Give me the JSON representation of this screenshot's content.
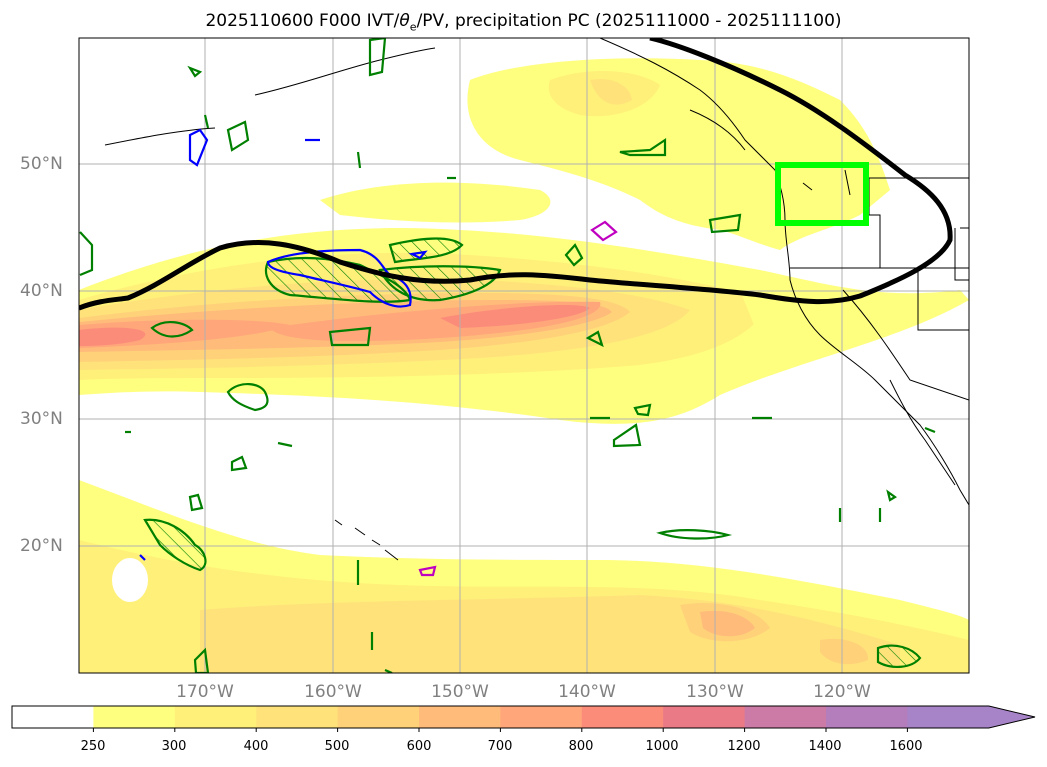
{
  "title": {
    "prefix": "2025110600 F000 IVT/",
    "theta": "θ",
    "sub": "e",
    "suffix": "/PV, precipitation PC (2025111000 - 2025111100)"
  },
  "axes": {
    "lat_labels": [
      "50°N",
      "40°N",
      "30°N",
      "20°N"
    ],
    "lon_labels": [
      "170°W",
      "160°W",
      "150°W",
      "140°W",
      "130°W",
      "120°W"
    ]
  },
  "colorbar": {
    "ticks": [
      "250",
      "300",
      "400",
      "500",
      "600",
      "700",
      "800",
      "1000",
      "1200",
      "1400",
      "1600"
    ],
    "colors": [
      "#ffffff",
      "#ffff7f",
      "#fff07a",
      "#ffe37a",
      "#ffd27a",
      "#ffbb7a",
      "#ffa67a",
      "#fb8c7a",
      "#e97a86",
      "#cc7aa6",
      "#b47ebd",
      "#a784c8"
    ]
  },
  "map": {
    "region": "North Pacific / US West Coast",
    "lon_range": [
      -180,
      -110
    ],
    "lat_range": [
      10,
      60
    ],
    "box_color": "#00ff00",
    "contour_color": "#000000"
  }
}
